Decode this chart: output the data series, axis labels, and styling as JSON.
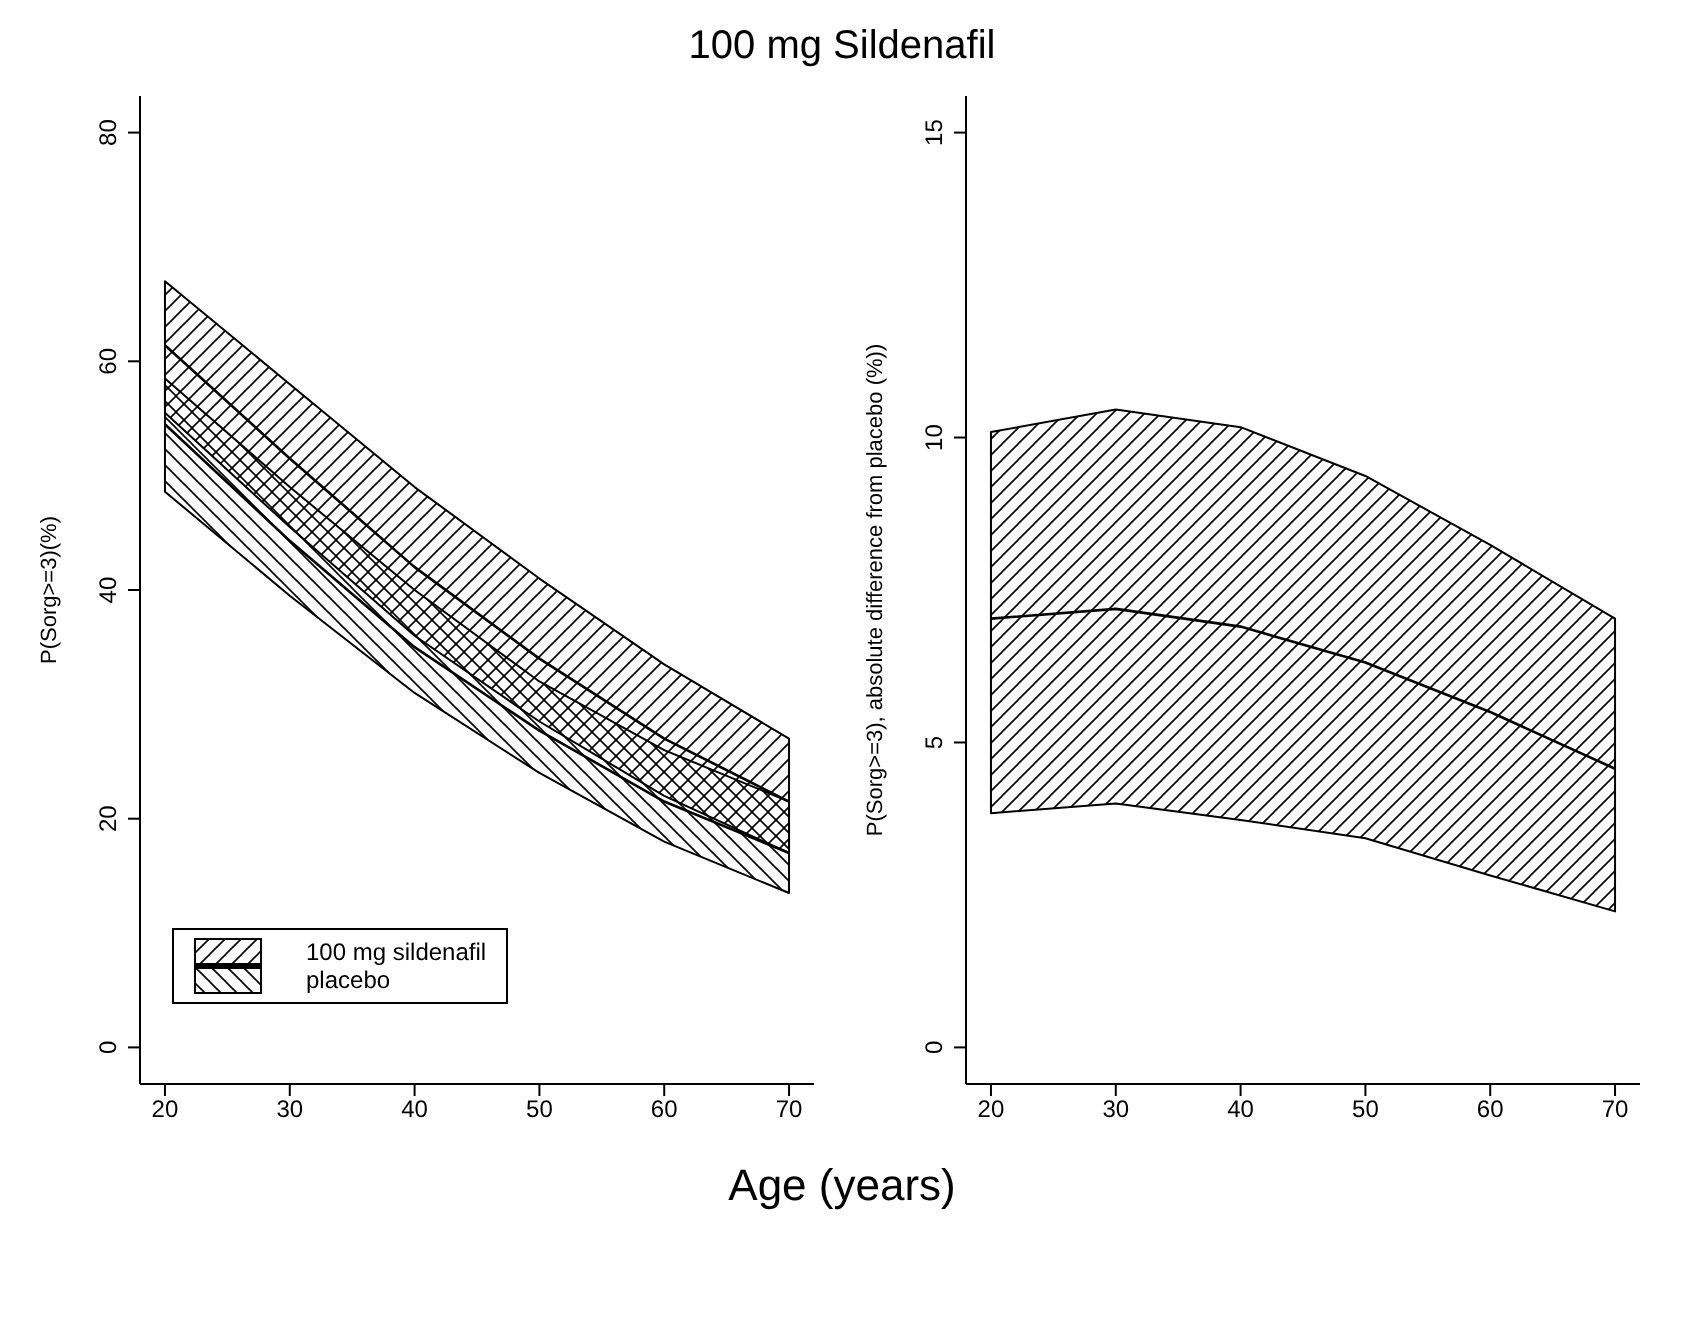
{
  "chart_data": [
    {
      "type": "line",
      "title": "100 mg Sildenafil",
      "xlabel": "Age (years)",
      "ylabel": "P(Sorg>=3)(%)",
      "x": [
        20,
        30,
        40,
        50,
        60,
        70
      ],
      "xlim": [
        18,
        72
      ],
      "xticks": [
        20,
        30,
        40,
        50,
        60,
        70
      ],
      "ylim": [
        -3.2,
        83.2
      ],
      "yticks": [
        0,
        20,
        40,
        60,
        80
      ],
      "legend": "bottom left",
      "series": [
        {
          "name": "100 mg sildenafil",
          "color": "#000000",
          "values": [
            61.4,
            51.5,
            42,
            34,
            27,
            21.5
          ],
          "lower": [
            55.5,
            45.5,
            36,
            28.5,
            22,
            17
          ],
          "upper": [
            67,
            58,
            49,
            41,
            33.5,
            27
          ]
        },
        {
          "name": "placebo",
          "color": "#000000",
          "values": [
            54.5,
            44.3,
            35,
            27.7,
            21.5,
            17
          ],
          "lower": [
            48.6,
            39.5,
            31,
            24,
            18,
            13.5
          ],
          "upper": [
            58.5,
            49,
            40,
            32,
            26,
            21.5
          ]
        }
      ]
    },
    {
      "type": "line",
      "ylabel": "P(Sorg>=3), absolute difference from placebo (%))",
      "x": [
        20,
        30,
        40,
        50,
        60,
        70
      ],
      "xlim": [
        18,
        72
      ],
      "xticks": [
        20,
        30,
        40,
        50,
        60,
        70
      ],
      "ylim": [
        -0.6,
        15.6
      ],
      "yticks": [
        0,
        5,
        10,
        15
      ],
      "series": [
        {
          "color": "#000000",
          "values": [
            7.03,
            7.19,
            6.9,
            6.31,
            5.5,
            4.57
          ],
          "lower": [
            3.84,
            4.0,
            3.73,
            3.43,
            2.82,
            2.23
          ],
          "upper": [
            10.09,
            10.46,
            10.17,
            9.37,
            8.24,
            7.03
          ]
        }
      ]
    }
  ]
}
